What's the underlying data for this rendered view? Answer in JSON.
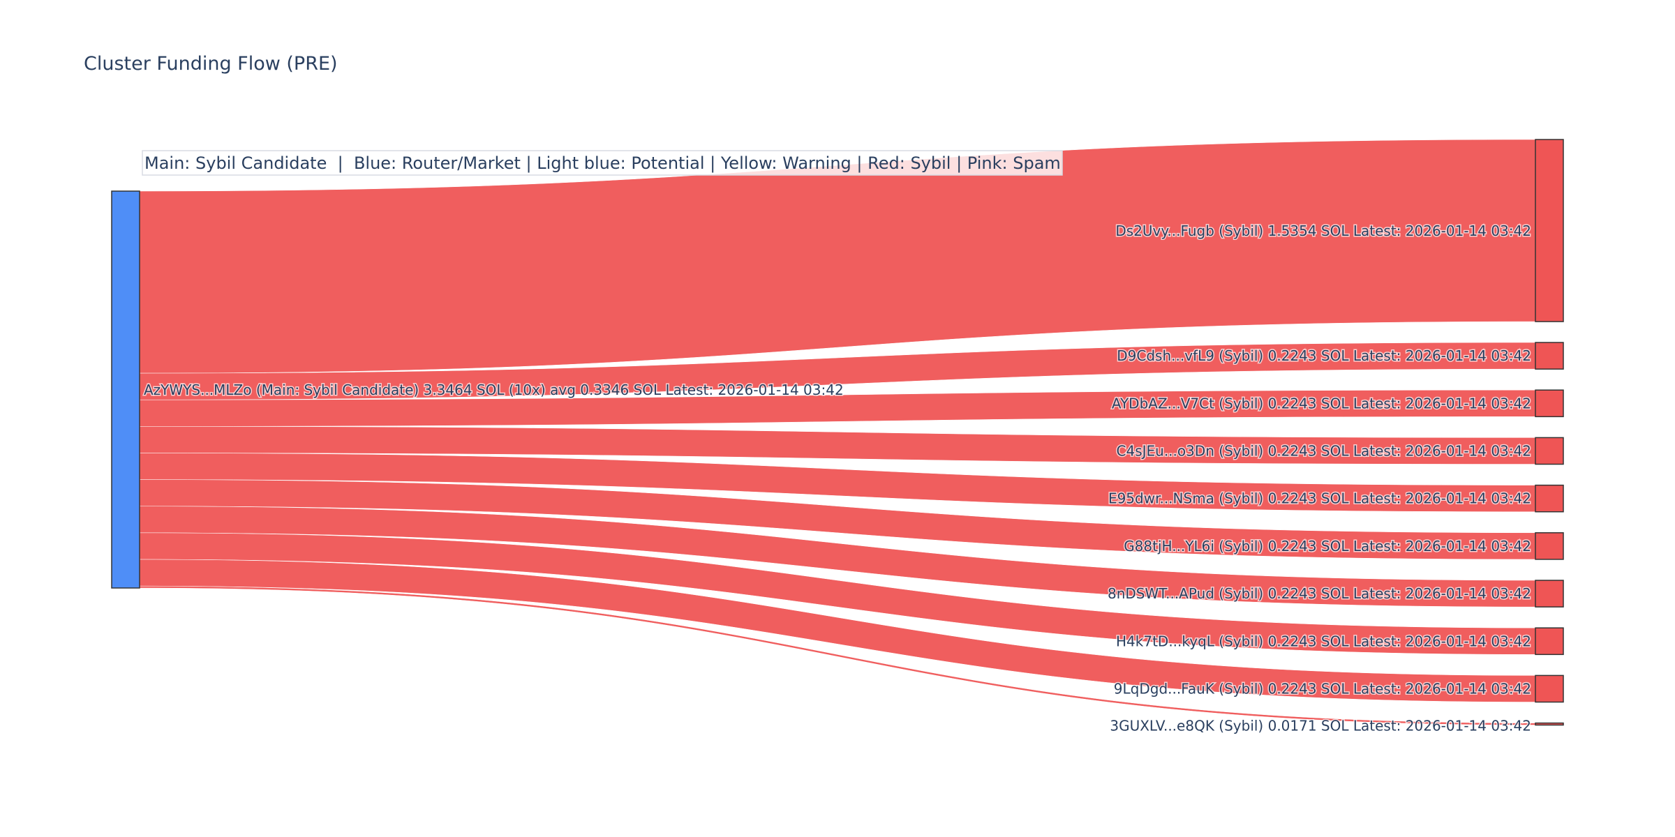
{
  "chart_data": {
    "type": "sankey",
    "title": "Cluster Funding Flow (PRE)",
    "legend_annotation": "Main: Sybil Candidate  |  Blue: Router/Market | Light blue: Potential | Yellow: Warning | Red: Sybil | Pink: Spam",
    "colors": {
      "main_node": "#4f8ef7",
      "sybil": "#ef5555",
      "link": "#ef5555",
      "text": "#2a3f5f"
    },
    "source": {
      "label": "AzYWYS...MLZo (Main: Sybil Candidate) 3.3464 SOL (10x) avg 0.3346 SOL Latest: 2026-01-14 03:42",
      "total_sol": 3.3464
    },
    "targets": [
      {
        "label": "Ds2Uvy...Fugb (Sybil) 1.5354 SOL Latest: 2026-01-14 03:42",
        "value": 1.5354
      },
      {
        "label": "D9Cdsh...vfL9 (Sybil) 0.2243 SOL Latest: 2026-01-14 03:42",
        "value": 0.2243
      },
      {
        "label": "AYDbAZ...V7Ct (Sybil) 0.2243 SOL Latest: 2026-01-14 03:42",
        "value": 0.2243
      },
      {
        "label": "C4sJEu...o3Dn (Sybil) 0.2243 SOL Latest: 2026-01-14 03:42",
        "value": 0.2243
      },
      {
        "label": "E95dwr...NSma (Sybil) 0.2243 SOL Latest: 2026-01-14 03:42",
        "value": 0.2243
      },
      {
        "label": "G88tjH...YL6i (Sybil) 0.2243 SOL Latest: 2026-01-14 03:42",
        "value": 0.2243
      },
      {
        "label": "8nDSWT...APud (Sybil) 0.2243 SOL Latest: 2026-01-14 03:42",
        "value": 0.2243
      },
      {
        "label": "H4k7tD...kyqL (Sybil) 0.2243 SOL Latest: 2026-01-14 03:42",
        "value": 0.2243
      },
      {
        "label": "9LqDgd...FauK (Sybil) 0.2243 SOL Latest: 2026-01-14 03:42",
        "value": 0.2243
      },
      {
        "label": "3GUXLV...e8QK (Sybil) 0.0171 SOL Latest: 2026-01-14 03:42",
        "value": 0.0171
      }
    ]
  }
}
